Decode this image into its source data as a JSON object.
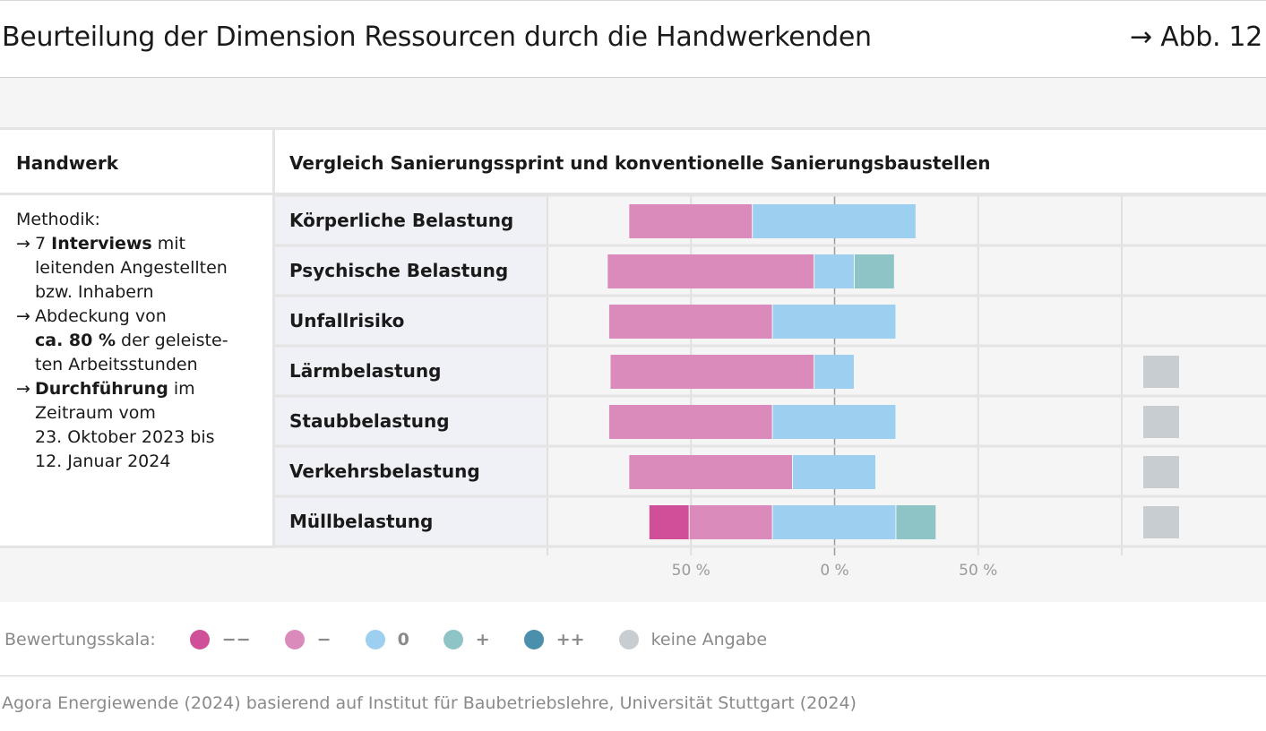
{
  "header": {
    "title": "Beurteilung der Dimension Ressourcen durch die Handwerkenden",
    "figure_ref": "→ Abb. 12"
  },
  "table": {
    "col_left": "Handwerk",
    "col_right": "Vergleich Sanierungssprint und konventionelle Sanierungsbaustellen"
  },
  "methodik": {
    "heading": "Methodik:",
    "lines": [
      {
        "arrow": "→",
        "pre": "7 ",
        "bold": "Interviews",
        "post": " mit"
      },
      {
        "arrow": "",
        "pre": "leitenden Angestellten",
        "bold": "",
        "post": ""
      },
      {
        "arrow": "",
        "pre": "bzw. Inhabern",
        "bold": "",
        "post": ""
      },
      {
        "arrow": "→",
        "pre": "Abdeckung von",
        "bold": "",
        "post": ""
      },
      {
        "arrow": "",
        "pre": "",
        "bold": "ca. 80 %",
        "post": " der geleiste-"
      },
      {
        "arrow": "",
        "pre": "ten Arbeitsstunden",
        "bold": "",
        "post": ""
      },
      {
        "arrow": "→",
        "pre": "",
        "bold": "Durchführung",
        "post": " im"
      },
      {
        "arrow": "",
        "pre": "Zeitraum vom",
        "bold": "",
        "post": ""
      },
      {
        "arrow": "",
        "pre": "23. Oktober 2023 bis",
        "bold": "",
        "post": ""
      },
      {
        "arrow": "",
        "pre": "12. Januar 2024",
        "bold": "",
        "post": ""
      }
    ]
  },
  "chart_data": {
    "type": "bar",
    "orientation": "horizontal-diverging",
    "categories": [
      "Körperliche Belastung",
      "Psychische Belastung",
      "Unfallrisiko",
      "Lärmbelastung",
      "Staubbelastung",
      "Verkehrsbelastung",
      "Müllbelastung"
    ],
    "series": [
      {
        "name": "−−",
        "color": "#cf4f99",
        "values": [
          0,
          0,
          0,
          0,
          0,
          0,
          14
        ]
      },
      {
        "name": "−",
        "color": "#db8bbb",
        "values": [
          43,
          72,
          57,
          71,
          57,
          57,
          29
        ]
      },
      {
        "name": "0",
        "color": "#9ccff0",
        "values": [
          57,
          14,
          43,
          14,
          43,
          29,
          43
        ]
      },
      {
        "name": "+",
        "color": "#8fc4c7",
        "values": [
          0,
          14,
          0,
          0,
          0,
          0,
          14
        ]
      },
      {
        "name": "++",
        "color": "#4a90ad",
        "values": [
          0,
          0,
          0,
          0,
          0,
          0,
          0
        ]
      },
      {
        "name": "keine Angabe",
        "color": "#c8cdd1",
        "values": [
          0,
          0,
          0,
          14,
          14,
          14,
          14
        ]
      }
    ],
    "neutral_split": "neutral centered on 0%",
    "x_ticks": [
      "50 %",
      "0 %",
      "50 %"
    ],
    "xlim": [
      -100,
      100
    ],
    "grid": true,
    "legend_position": "bottom"
  },
  "legend": {
    "label": "Bewertungsskala:",
    "items": [
      {
        "symbol": "−−",
        "color": "#cf4f99"
      },
      {
        "symbol": "−",
        "color": "#db8bbb"
      },
      {
        "symbol": "0",
        "color": "#9ccff0"
      },
      {
        "symbol": "+",
        "color": "#8fc4c7"
      },
      {
        "symbol": "++",
        "color": "#4a90ad"
      },
      {
        "symbol": "keine Angabe",
        "color": "#c8cdd1"
      }
    ]
  },
  "source": "Agora Energiewende (2024) basierend auf Institut für Baubetriebslehre, Universität Stuttgart (2024)"
}
